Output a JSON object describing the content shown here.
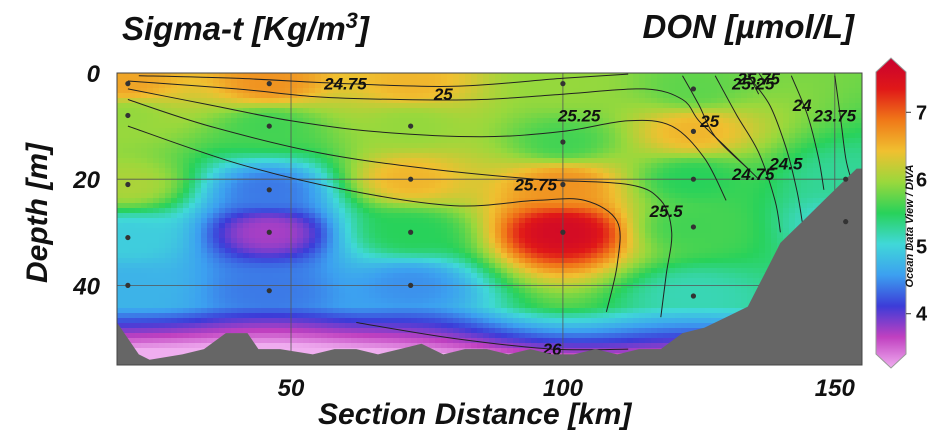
{
  "title_left": "Sigma-t [Kg/m³]",
  "title_right": "DON [µmol/L]",
  "watermark": "Ocean Data View / DIVA",
  "chart_data": {
    "type": "heatmap",
    "title_left": "Sigma-t [Kg/m³]",
    "title_right": "DON [µmol/L]",
    "xlabel": "Section Distance [km]",
    "ylabel": "Depth [m]",
    "xlim": [
      18,
      155
    ],
    "ylim": [
      55,
      0
    ],
    "x_ticks": [
      50,
      100,
      150
    ],
    "y_ticks": [
      0,
      20,
      40
    ],
    "grid": true,
    "colorbar": {
      "range": [
        3.4,
        7.6
      ],
      "ticks": [
        4,
        5,
        6,
        7
      ],
      "colors": [
        "#f0aef0",
        "#c040c0",
        "#3c3cd8",
        "#3ca0f0",
        "#40d8d8",
        "#28d25a",
        "#9ad83c",
        "#f0c030",
        "#f07818",
        "#e01818",
        "#c80030"
      ]
    },
    "don_field": [
      {
        "x": 20,
        "y": 2,
        "v": 6.5
      },
      {
        "x": 20,
        "y": 8,
        "v": 5.9
      },
      {
        "x": 20,
        "y": 21,
        "v": 6.0
      },
      {
        "x": 20,
        "y": 31,
        "v": 5.0
      },
      {
        "x": 20,
        "y": 40,
        "v": 4.8
      },
      {
        "x": 46,
        "y": 2,
        "v": 6.6
      },
      {
        "x": 46,
        "y": 10,
        "v": 5.6
      },
      {
        "x": 46,
        "y": 22,
        "v": 4.5
      },
      {
        "x": 46,
        "y": 30,
        "v": 3.9
      },
      {
        "x": 46,
        "y": 41,
        "v": 4.5
      },
      {
        "x": 72,
        "y": 2,
        "v": 6.4
      },
      {
        "x": 72,
        "y": 10,
        "v": 5.9
      },
      {
        "x": 72,
        "y": 20,
        "v": 6.4
      },
      {
        "x": 72,
        "y": 30,
        "v": 5.5
      },
      {
        "x": 72,
        "y": 40,
        "v": 4.6
      },
      {
        "x": 100,
        "y": 2,
        "v": 5.9
      },
      {
        "x": 100,
        "y": 13,
        "v": 5.6
      },
      {
        "x": 100,
        "y": 21,
        "v": 6.6
      },
      {
        "x": 100,
        "y": 30,
        "v": 7.4
      },
      {
        "x": 124,
        "y": 3,
        "v": 5.7
      },
      {
        "x": 124,
        "y": 11,
        "v": 6.4
      },
      {
        "x": 124,
        "y": 20,
        "v": 5.5
      },
      {
        "x": 124,
        "y": 29,
        "v": 5.6
      },
      {
        "x": 124,
        "y": 42,
        "v": 5.2
      },
      {
        "x": 152,
        "y": 20,
        "v": 5.3
      },
      {
        "x": 152,
        "y": 28,
        "v": 5.1
      }
    ],
    "stations": [
      {
        "x": 20,
        "y": 2
      },
      {
        "x": 20,
        "y": 8
      },
      {
        "x": 20,
        "y": 21
      },
      {
        "x": 20,
        "y": 31
      },
      {
        "x": 20,
        "y": 40
      },
      {
        "x": 46,
        "y": 2
      },
      {
        "x": 46,
        "y": 10
      },
      {
        "x": 46,
        "y": 22
      },
      {
        "x": 46,
        "y": 30
      },
      {
        "x": 46,
        "y": 41
      },
      {
        "x": 72,
        "y": 10
      },
      {
        "x": 72,
        "y": 20
      },
      {
        "x": 72,
        "y": 30
      },
      {
        "x": 72,
        "y": 40
      },
      {
        "x": 100,
        "y": 2
      },
      {
        "x": 100,
        "y": 13
      },
      {
        "x": 100,
        "y": 21
      },
      {
        "x": 100,
        "y": 30
      },
      {
        "x": 124,
        "y": 3
      },
      {
        "x": 124,
        "y": 11
      },
      {
        "x": 124,
        "y": 20
      },
      {
        "x": 124,
        "y": 29
      },
      {
        "x": 124,
        "y": 42
      },
      {
        "x": 152,
        "y": 20
      },
      {
        "x": 152,
        "y": 28
      }
    ],
    "bathymetry": [
      [
        18,
        47
      ],
      [
        22,
        53
      ],
      [
        24,
        54
      ],
      [
        30,
        53
      ],
      [
        34,
        52
      ],
      [
        38,
        49
      ],
      [
        42,
        49
      ],
      [
        44,
        52
      ],
      [
        48,
        52
      ],
      [
        54,
        53
      ],
      [
        58,
        52
      ],
      [
        62,
        52
      ],
      [
        66,
        53
      ],
      [
        70,
        52
      ],
      [
        74,
        51
      ],
      [
        78,
        53
      ],
      [
        82,
        52
      ],
      [
        86,
        52
      ],
      [
        90,
        53
      ],
      [
        94,
        52
      ],
      [
        98,
        53
      ],
      [
        102,
        53
      ],
      [
        106,
        52
      ],
      [
        110,
        53
      ],
      [
        114,
        52
      ],
      [
        118,
        52
      ],
      [
        122,
        49
      ],
      [
        126,
        48
      ],
      [
        130,
        46
      ],
      [
        134,
        44
      ],
      [
        136,
        40
      ],
      [
        138,
        36
      ],
      [
        140,
        32
      ],
      [
        142,
        30
      ],
      [
        144,
        28
      ],
      [
        146,
        26
      ],
      [
        148,
        24
      ],
      [
        150,
        22
      ],
      [
        154,
        18
      ],
      [
        155,
        18
      ]
    ],
    "sigma_t_isolines": [
      {
        "label": "24.75",
        "points": [
          [
            22,
            0.5
          ],
          [
            40,
            1
          ],
          [
            60,
            2
          ],
          [
            80,
            2.5
          ],
          [
            100,
            1
          ],
          [
            112,
            0.2
          ]
        ],
        "label_at": [
          60,
          2
        ]
      },
      {
        "label": "25",
        "points": [
          [
            20,
            1.5
          ],
          [
            40,
            3
          ],
          [
            55,
            4.5
          ],
          [
            70,
            5
          ],
          [
            85,
            5
          ],
          [
            100,
            4
          ],
          [
            115,
            3
          ],
          [
            122,
            5
          ],
          [
            125,
            9
          ],
          [
            130,
            14
          ],
          [
            136,
            20
          ]
        ],
        "label_at": [
          78,
          4
        ]
      },
      {
        "label": "25.25",
        "points": [
          [
            20,
            3
          ],
          [
            35,
            6
          ],
          [
            50,
            9
          ],
          [
            65,
            11
          ],
          [
            85,
            12
          ],
          [
            100,
            11
          ],
          [
            112,
            9
          ],
          [
            120,
            10
          ],
          [
            126,
            16
          ],
          [
            130,
            24
          ]
        ],
        "label_at": [
          103,
          8
        ]
      },
      {
        "label": "25.5",
        "points": [
          [
            20,
            5
          ],
          [
            35,
            10
          ],
          [
            55,
            15
          ],
          [
            75,
            18
          ],
          [
            95,
            20
          ],
          [
            112,
            21
          ],
          [
            118,
            24
          ],
          [
            120,
            30
          ],
          [
            119,
            38
          ],
          [
            118,
            46
          ]
        ],
        "label_at": [
          119,
          26
        ]
      },
      {
        "label": "25.75",
        "points": [
          [
            20,
            10
          ],
          [
            40,
            17
          ],
          [
            60,
            22
          ],
          [
            80,
            25
          ],
          [
            95,
            24
          ],
          [
            104,
            24
          ],
          [
            110,
            28
          ],
          [
            110,
            36
          ],
          [
            108,
            45
          ]
        ],
        "label_at": [
          95,
          21
        ]
      },
      {
        "label": "26",
        "points": [
          [
            62,
            47
          ],
          [
            80,
            50
          ],
          [
            98,
            52
          ],
          [
            112,
            52
          ]
        ],
        "label_at": [
          98,
          52
        ]
      },
      {
        "label": "24.5",
        "points": [
          [
            134,
            0.5
          ],
          [
            138,
            6
          ],
          [
            141,
            14
          ],
          [
            143,
            22
          ],
          [
            144,
            28
          ]
        ],
        "label_at": [
          141,
          17
        ]
      },
      {
        "label": "24.75",
        "points": [
          [
            128,
            0.5
          ],
          [
            132,
            8
          ],
          [
            136,
            15
          ],
          [
            139,
            24
          ],
          [
            140,
            30
          ]
        ],
        "label_at": [
          135,
          19
        ]
      },
      {
        "label": "25",
        "points": [
          [
            122,
            0.5
          ],
          [
            125,
            6
          ],
          [
            128,
            12
          ],
          [
            134,
            18
          ]
        ],
        "label_at": [
          127,
          9
        ]
      },
      {
        "label": "25.25",
        "points": [
          [
            134,
            0
          ],
          [
            136,
            4
          ]
        ],
        "label_at": [
          135,
          2
        ]
      },
      {
        "label": "24",
        "points": [
          [
            142,
            0.5
          ],
          [
            145,
            8
          ],
          [
            147,
            16
          ],
          [
            148,
            22
          ]
        ],
        "label_at": [
          144,
          6
        ]
      },
      {
        "label": "23.75",
        "points": [
          [
            150,
            0.5
          ],
          [
            151,
            8
          ],
          [
            152,
            16
          ],
          [
            153,
            20
          ]
        ],
        "label_at": [
          150,
          8
        ]
      },
      {
        "label": "25.75",
        "points": [
          [
            136,
            0
          ],
          [
            137,
            1.5
          ]
        ],
        "label_at": [
          136,
          1
        ]
      }
    ]
  }
}
